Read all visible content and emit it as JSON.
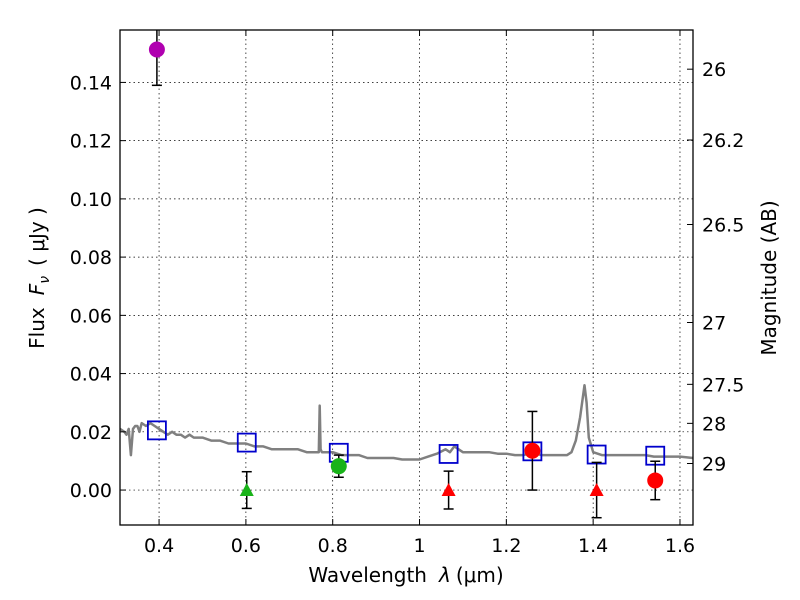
{
  "chart_data": {
    "type": "scatter",
    "title": "",
    "xlabel_prefix": "Wavelength",
    "xlabel_symbol": "λ",
    "xlabel_units": "(μm)",
    "ylabel_prefix": "Flux",
    "ylabel_symbol": "F",
    "ylabel_subscript": "ν",
    "ylabel_units": "( μJy )",
    "y2label": "Magnitude (AB)",
    "xlim": [
      0.31,
      1.63
    ],
    "ylim": [
      -0.012,
      0.158
    ],
    "grid": true,
    "x_ticks": [
      {
        "value": 0.4,
        "label": "0.4"
      },
      {
        "value": 0.6,
        "label": "0.6"
      },
      {
        "value": 0.8,
        "label": "0.8"
      },
      {
        "value": 1.0,
        "label": "1"
      },
      {
        "value": 1.2,
        "label": "1.2"
      },
      {
        "value": 1.4,
        "label": "1.4"
      },
      {
        "value": 1.6,
        "label": "1.6"
      }
    ],
    "y_ticks": [
      {
        "value": 0.0,
        "label": "0.00"
      },
      {
        "value": 0.02,
        "label": "0.02"
      },
      {
        "value": 0.04,
        "label": "0.04"
      },
      {
        "value": 0.06,
        "label": "0.06"
      },
      {
        "value": 0.08,
        "label": "0.08"
      },
      {
        "value": 0.1,
        "label": "0.10"
      },
      {
        "value": 0.12,
        "label": "0.12"
      },
      {
        "value": 0.14,
        "label": "0.14"
      }
    ],
    "y2_ticks": [
      {
        "value": 26,
        "label": "26"
      },
      {
        "value": 26.2,
        "label": "26.2"
      },
      {
        "value": 26.5,
        "label": "26.5"
      },
      {
        "value": 27,
        "label": "27"
      },
      {
        "value": 27.5,
        "label": "27.5"
      },
      {
        "value": 28,
        "label": "28"
      },
      {
        "value": 29,
        "label": "29"
      }
    ],
    "series": [
      {
        "name": "template-spectrum",
        "kind": "line",
        "color": "#808080",
        "x": [
          0.31,
          0.32,
          0.325,
          0.33,
          0.335,
          0.34,
          0.345,
          0.35,
          0.355,
          0.36,
          0.37,
          0.38,
          0.39,
          0.4,
          0.41,
          0.42,
          0.43,
          0.44,
          0.45,
          0.46,
          0.47,
          0.48,
          0.5,
          0.52,
          0.54,
          0.56,
          0.58,
          0.6,
          0.62,
          0.64,
          0.66,
          0.68,
          0.7,
          0.72,
          0.74,
          0.76,
          0.768,
          0.77,
          0.772,
          0.775,
          0.78,
          0.8,
          0.82,
          0.84,
          0.86,
          0.88,
          0.9,
          0.92,
          0.94,
          0.96,
          0.98,
          1.0,
          1.02,
          1.04,
          1.06,
          1.07,
          1.08,
          1.09,
          1.1,
          1.12,
          1.14,
          1.16,
          1.18,
          1.2,
          1.22,
          1.24,
          1.26,
          1.28,
          1.3,
          1.32,
          1.34,
          1.35,
          1.36,
          1.37,
          1.38,
          1.385,
          1.39,
          1.4,
          1.42,
          1.44,
          1.46,
          1.48,
          1.5,
          1.52,
          1.54,
          1.56,
          1.58,
          1.6,
          1.63
        ],
        "y": [
          0.021,
          0.02,
          0.019,
          0.021,
          0.012,
          0.021,
          0.022,
          0.022,
          0.02,
          0.023,
          0.022,
          0.023,
          0.022,
          0.021,
          0.02,
          0.019,
          0.02,
          0.019,
          0.019,
          0.018,
          0.019,
          0.018,
          0.018,
          0.017,
          0.017,
          0.016,
          0.016,
          0.016,
          0.015,
          0.015,
          0.014,
          0.014,
          0.014,
          0.014,
          0.013,
          0.013,
          0.013,
          0.029,
          0.014,
          0.013,
          0.013,
          0.013,
          0.012,
          0.012,
          0.012,
          0.011,
          0.011,
          0.011,
          0.011,
          0.0105,
          0.0105,
          0.0105,
          0.0115,
          0.0125,
          0.014,
          0.013,
          0.015,
          0.014,
          0.013,
          0.013,
          0.013,
          0.013,
          0.0125,
          0.0125,
          0.012,
          0.012,
          0.013,
          0.012,
          0.012,
          0.012,
          0.012,
          0.013,
          0.017,
          0.025,
          0.036,
          0.03,
          0.018,
          0.013,
          0.012,
          0.012,
          0.012,
          0.012,
          0.012,
          0.012,
          0.0115,
          0.0115,
          0.0115,
          0.0115,
          0.011
        ]
      },
      {
        "name": "model-photometry",
        "kind": "marker",
        "marker": "square-open",
        "color": "#0000cc",
        "x": [
          0.395,
          0.602,
          0.814,
          1.067,
          1.26,
          1.408,
          1.543
        ],
        "y": [
          0.0205,
          0.0163,
          0.0128,
          0.0124,
          0.0133,
          0.0122,
          0.0118
        ]
      },
      {
        "name": "detection-violet",
        "kind": "marker",
        "marker": "circle",
        "color": "#b000b0",
        "x": [
          0.395
        ],
        "y": [
          0.1513
        ],
        "err": [
          0.0123
        ]
      },
      {
        "name": "detection-green",
        "kind": "marker",
        "marker": "circle",
        "color": "#19b319",
        "x": [
          0.814
        ],
        "y": [
          0.0082
        ],
        "err": [
          0.0038
        ]
      },
      {
        "name": "detection-red",
        "kind": "marker",
        "marker": "circle",
        "color": "#ff0000",
        "x": [
          1.26,
          1.543
        ],
        "y": [
          0.0135,
          0.0033
        ],
        "err": [
          0.0135,
          0.0066
        ]
      },
      {
        "name": "upper-limit-green",
        "kind": "marker",
        "marker": "triangle",
        "color": "#19b319",
        "x": [
          0.602
        ],
        "y": [
          0.0
        ],
        "err": [
          0.0063
        ]
      },
      {
        "name": "upper-limit-red",
        "kind": "marker",
        "marker": "triangle",
        "color": "#ff0000",
        "x": [
          1.067,
          1.408
        ],
        "y": [
          0.0,
          0.0
        ],
        "err": [
          0.0065,
          0.0095
        ]
      }
    ]
  }
}
